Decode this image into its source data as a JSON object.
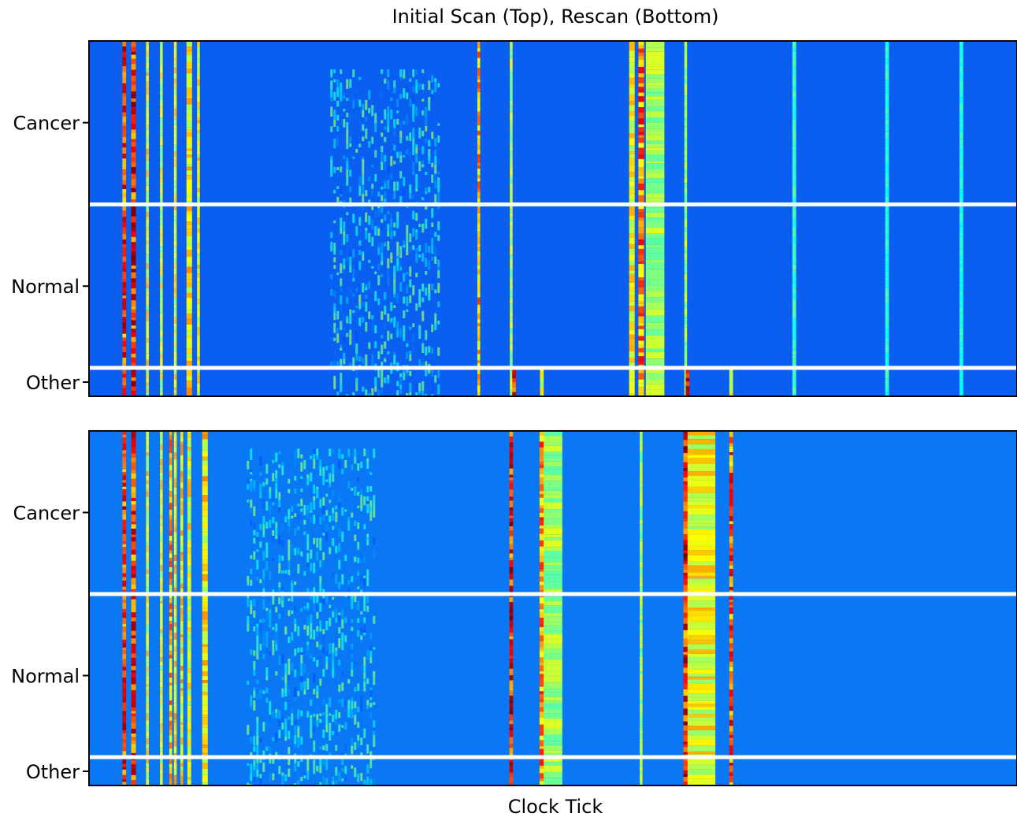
{
  "chart_data": {
    "type": "heatmap",
    "title": "Initial Scan (Top), Rescan (Bottom)",
    "xlabel": "Clock Tick",
    "colormap": "jet",
    "colors": {
      "top_background": "#0a5ef0",
      "bottom_background": "#0a78f5",
      "separator": "#ffffff"
    },
    "panels": [
      {
        "name": "Initial Scan",
        "position": "top",
        "groups": [
          {
            "label": "Cancer",
            "fraction": 0.46
          },
          {
            "label": "Normal",
            "fraction": 0.46
          },
          {
            "label": "Other",
            "fraction": 0.08
          }
        ],
        "x_features": [
          {
            "x": 0.038,
            "w": 0.004,
            "intensity": 0.9,
            "extent": 1.0
          },
          {
            "x": 0.048,
            "w": 0.005,
            "intensity": 0.95,
            "extent": 1.0
          },
          {
            "x": 0.063,
            "w": 0.003,
            "intensity": 0.55,
            "extent": 1.0
          },
          {
            "x": 0.078,
            "w": 0.003,
            "intensity": 0.5,
            "extent": 1.0
          },
          {
            "x": 0.093,
            "w": 0.003,
            "intensity": 0.55,
            "extent": 1.0
          },
          {
            "x": 0.108,
            "w": 0.006,
            "intensity": 0.6,
            "extent": 1.0
          },
          {
            "x": 0.118,
            "w": 0.003,
            "intensity": 0.55,
            "extent": 1.0
          },
          {
            "x": 0.32,
            "w": 0.12,
            "intensity": 0.33,
            "extent": 0.92
          },
          {
            "x": 0.42,
            "w": 0.003,
            "intensity": 0.7,
            "extent": 1.0
          },
          {
            "x": 0.455,
            "w": 0.003,
            "intensity": 0.45,
            "extent": 1.0
          },
          {
            "x": 0.458,
            "w": 0.004,
            "intensity": 0.95,
            "extent": 0.08
          },
          {
            "x": 0.488,
            "w": 0.004,
            "intensity": 0.5,
            "extent": 0.08
          },
          {
            "x": 0.585,
            "w": 0.006,
            "intensity": 0.55,
            "extent": 1.0
          },
          {
            "x": 0.595,
            "w": 0.006,
            "intensity": 0.8,
            "extent": 1.0
          },
          {
            "x": 0.61,
            "w": 0.02,
            "intensity": 0.4,
            "extent": 1.0
          },
          {
            "x": 0.643,
            "w": 0.003,
            "intensity": 0.4,
            "extent": 1.0
          },
          {
            "x": 0.645,
            "w": 0.004,
            "intensity": 0.95,
            "extent": 0.08
          },
          {
            "x": 0.692,
            "w": 0.004,
            "intensity": 0.5,
            "extent": 0.08
          },
          {
            "x": 0.76,
            "w": 0.004,
            "intensity": 0.22,
            "extent": 1.0
          },
          {
            "x": 0.86,
            "w": 0.004,
            "intensity": 0.2,
            "extent": 1.0
          },
          {
            "x": 0.94,
            "w": 0.004,
            "intensity": 0.18,
            "extent": 1.0
          }
        ]
      },
      {
        "name": "Rescan",
        "position": "bottom",
        "groups": [
          {
            "label": "Cancer",
            "fraction": 0.46
          },
          {
            "label": "Normal",
            "fraction": 0.46
          },
          {
            "label": "Other",
            "fraction": 0.08
          }
        ],
        "x_features": [
          {
            "x": 0.038,
            "w": 0.004,
            "intensity": 0.9,
            "extent": 1.0
          },
          {
            "x": 0.048,
            "w": 0.005,
            "intensity": 0.9,
            "extent": 1.0
          },
          {
            "x": 0.063,
            "w": 0.003,
            "intensity": 0.55,
            "extent": 1.0
          },
          {
            "x": 0.078,
            "w": 0.003,
            "intensity": 0.55,
            "extent": 1.0
          },
          {
            "x": 0.088,
            "w": 0.003,
            "intensity": 0.7,
            "extent": 1.0
          },
          {
            "x": 0.093,
            "w": 0.003,
            "intensity": 0.6,
            "extent": 1.0
          },
          {
            "x": 0.1,
            "w": 0.003,
            "intensity": 0.6,
            "extent": 1.0
          },
          {
            "x": 0.108,
            "w": 0.004,
            "intensity": 0.55,
            "extent": 1.0
          },
          {
            "x": 0.125,
            "w": 0.006,
            "intensity": 0.6,
            "extent": 1.0
          },
          {
            "x": 0.24,
            "w": 0.14,
            "intensity": 0.32,
            "extent": 0.95
          },
          {
            "x": 0.455,
            "w": 0.004,
            "intensity": 0.95,
            "extent": 1.0
          },
          {
            "x": 0.488,
            "w": 0.005,
            "intensity": 0.75,
            "extent": 1.0
          },
          {
            "x": 0.5,
            "w": 0.02,
            "intensity": 0.4,
            "extent": 1.0
          },
          {
            "x": 0.595,
            "w": 0.003,
            "intensity": 0.4,
            "extent": 1.0
          },
          {
            "x": 0.643,
            "w": 0.005,
            "intensity": 0.95,
            "extent": 1.0
          },
          {
            "x": 0.66,
            "w": 0.03,
            "intensity": 0.55,
            "extent": 1.0
          },
          {
            "x": 0.692,
            "w": 0.004,
            "intensity": 0.85,
            "extent": 1.0
          }
        ]
      }
    ]
  }
}
